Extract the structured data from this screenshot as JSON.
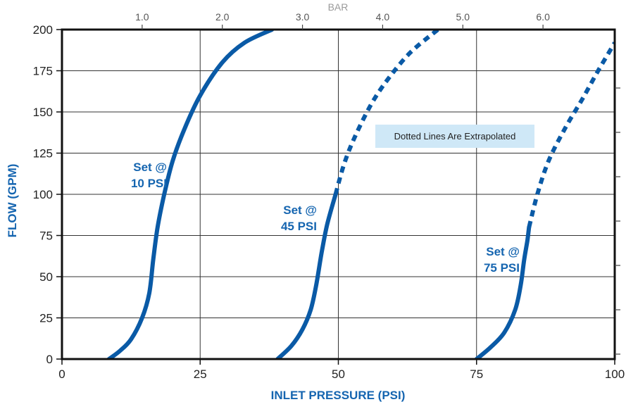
{
  "chart_data": {
    "type": "line",
    "title": "",
    "xlabel": "INLET PRESSURE (PSI)",
    "ylabel": "FLOW (GPM)",
    "top_axis_label": "BAR",
    "xlim": [
      0,
      100
    ],
    "ylim": [
      0,
      200
    ],
    "x_ticks": [
      "0",
      "25",
      "50",
      "75",
      "100"
    ],
    "y_ticks": [
      "0",
      "25",
      "50",
      "75",
      "100",
      "125",
      "150",
      "175",
      "200"
    ],
    "top_ticks": [
      {
        "bar": 1.0,
        "label": "1.0"
      },
      {
        "bar": 2.0,
        "label": "2.0"
      },
      {
        "bar": 3.0,
        "label": "3.0"
      },
      {
        "bar": 4.0,
        "label": "4.0"
      },
      {
        "bar": 5.0,
        "label": "5.0"
      },
      {
        "bar": 6.0,
        "label": "6.0"
      }
    ],
    "grid": true,
    "annotation": "Dotted Lines Are Extrapolated",
    "colors": {
      "series": "#0a5aa6",
      "label": "#1565b0",
      "note_bg": "#cfe8f7",
      "frame": "#111111",
      "grid": "#333333"
    },
    "series": [
      {
        "label_lines": [
          "Set @",
          "10 PSI"
        ],
        "solid": [
          [
            8.5,
            0
          ],
          [
            10.5,
            5
          ],
          [
            12.5,
            12
          ],
          [
            14.5,
            25
          ],
          [
            15.8,
            40
          ],
          [
            16.5,
            60
          ],
          [
            17.3,
            80
          ],
          [
            18.5,
            100
          ],
          [
            20,
            120
          ],
          [
            22.2,
            140
          ],
          [
            25,
            160
          ],
          [
            29,
            180
          ],
          [
            33,
            192
          ],
          [
            38,
            200
          ]
        ],
        "dotted": []
      },
      {
        "label_lines": [
          "Set @",
          "45 PSI"
        ],
        "solid": [
          [
            39,
            0
          ],
          [
            41.5,
            8
          ],
          [
            43.5,
            18
          ],
          [
            45,
            30
          ],
          [
            46,
            45
          ],
          [
            47,
            65
          ],
          [
            48,
            82
          ],
          [
            49.5,
            100
          ]
        ],
        "dotted": [
          [
            49.5,
            100
          ],
          [
            51,
            118
          ],
          [
            53,
            135
          ],
          [
            56,
            155
          ],
          [
            59,
            170
          ],
          [
            63,
            186
          ],
          [
            68,
            200
          ]
        ]
      },
      {
        "label_lines": [
          "Set @",
          "75 PSI"
        ],
        "solid": [
          [
            75,
            0
          ],
          [
            77.5,
            7
          ],
          [
            80,
            16
          ],
          [
            82,
            30
          ],
          [
            83,
            45
          ],
          [
            83.6,
            60
          ],
          [
            84.2,
            72
          ],
          [
            84.5,
            80
          ]
        ],
        "dotted": [
          [
            84.5,
            80
          ],
          [
            86,
            100
          ],
          [
            88,
            120
          ],
          [
            91,
            140
          ],
          [
            94,
            157
          ],
          [
            97,
            175
          ],
          [
            100,
            192
          ]
        ]
      }
    ]
  }
}
